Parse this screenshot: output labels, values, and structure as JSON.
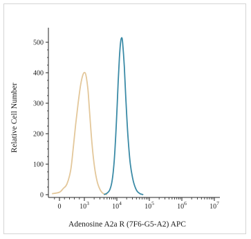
{
  "chart_data": {
    "type": "line",
    "title": "",
    "xlabel": "Adenosine A2a R (7F6-G5-A2) APC",
    "ylabel": "Relative Cell Number",
    "xscale": "log",
    "ylim": [
      0,
      500
    ],
    "grid": false,
    "yticks": [
      {
        "value": 0,
        "label": "0"
      },
      {
        "value": 100,
        "label": "100"
      },
      {
        "value": 200,
        "label": "200"
      },
      {
        "value": 300,
        "label": "300"
      },
      {
        "value": 400,
        "label": "400"
      },
      {
        "value": 500,
        "label": "500"
      }
    ],
    "xticks": [
      {
        "value": 0,
        "base": "0",
        "exp": ""
      },
      {
        "value": 1000,
        "base": "10",
        "exp": "3"
      },
      {
        "value": 10000,
        "base": "10",
        "exp": "4"
      },
      {
        "value": 100000,
        "base": "10",
        "exp": "5"
      },
      {
        "value": 1000000,
        "base": "10",
        "exp": "6"
      },
      {
        "value": 10000000,
        "base": "10",
        "exp": "7"
      }
    ],
    "series": [
      {
        "color": "#e3c79a",
        "x": [
          -300,
          0,
          150,
          300,
          450,
          550,
          650,
          750,
          850,
          950,
          1050,
          1150,
          1300,
          1450,
          1650,
          1900,
          2200,
          2600,
          3100,
          3600,
          4200,
          5000
        ],
        "y": [
          3,
          8,
          20,
          35,
          80,
          150,
          230,
          300,
          360,
          395,
          400,
          385,
          340,
          270,
          190,
          120,
          70,
          35,
          15,
          6,
          2,
          0
        ]
      },
      {
        "color": "#3a8aa6",
        "x": [
          4000,
          5000,
          6000,
          7000,
          8000,
          9000,
          10000,
          11000,
          12000,
          13000,
          14000,
          15000,
          17000,
          19000,
          22000,
          26000,
          32000,
          40000,
          50000,
          65000
        ],
        "y": [
          0,
          5,
          15,
          40,
          90,
          170,
          270,
          370,
          450,
          500,
          515,
          500,
          420,
          310,
          190,
          100,
          45,
          15,
          4,
          0
        ]
      }
    ]
  }
}
